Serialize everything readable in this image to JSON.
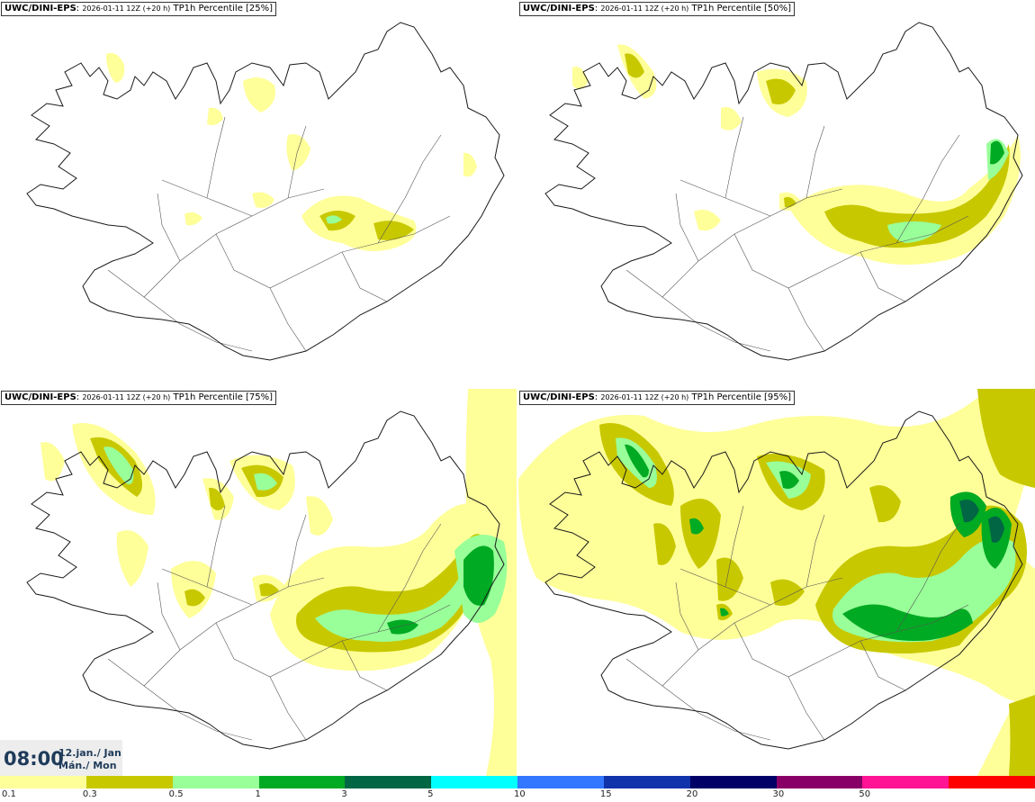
{
  "panels": [
    {
      "model": "UWC/DINI-EPS",
      "run": "2026-01-11 12Z (+20 h)",
      "product": "TP1h Percentile [25%]"
    },
    {
      "model": "UWC/DINI-EPS",
      "run": "2026-01-11 12Z (+20 h)",
      "product": "TP1h Percentile [50%]"
    },
    {
      "model": "UWC/DINI-EPS",
      "run": "2026-01-11 12Z (+20 h)",
      "product": "TP1h Percentile [75%]"
    },
    {
      "model": "UWC/DINI-EPS",
      "run": "2026-01-11 12Z (+20 h)",
      "product": "TP1h Percentile [95%]"
    }
  ],
  "valid_time": {
    "time": "08:00",
    "date": "12.jan./ Jan",
    "day": "Mán./ Mon"
  },
  "legend": {
    "colors": [
      "#ffff99",
      "#c8c800",
      "#99ff99",
      "#00aa22",
      "#006644",
      "#00ffff",
      "#3377ff",
      "#1133aa",
      "#000066",
      "#880066",
      "#ff1493",
      "#ff0000"
    ],
    "ticks": [
      "0.1",
      "0.3",
      "0.5",
      "1",
      "3",
      "5",
      "10",
      "15",
      "20",
      "30",
      "50"
    ]
  }
}
